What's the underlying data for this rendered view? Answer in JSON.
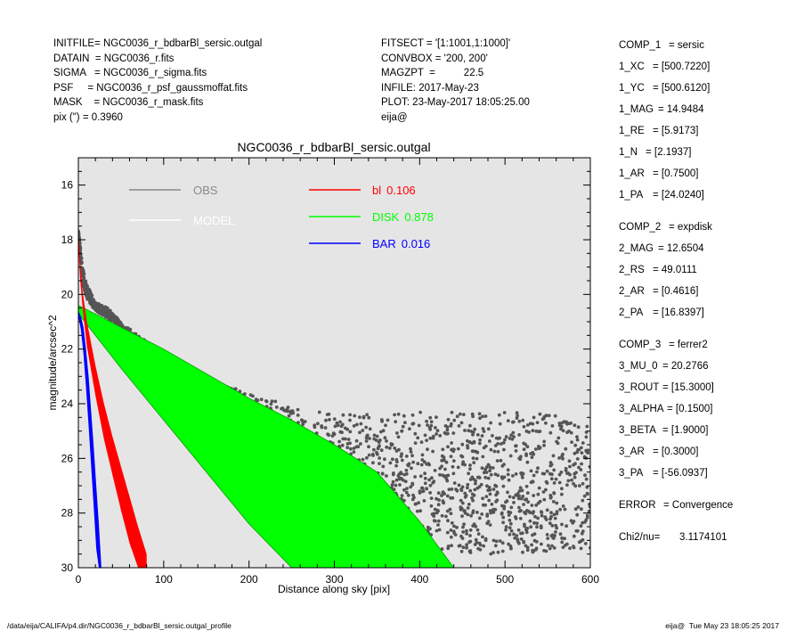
{
  "header_left": [
    {
      "key": "INITFILE=",
      "value": "NGC0036_r_bdbarBl_sersic.outgal"
    },
    {
      "key": "DATAIN  =",
      "value": "NGC0036_r.fits"
    },
    {
      "key": "SIGMA   =",
      "value": "NGC0036_r_sigma.fits"
    },
    {
      "key": "PSF     =",
      "value": "NGC0036_r_psf_gaussmoffat.fits"
    },
    {
      "key": "MASK    =",
      "value": "NGC0036_r_mask.fits"
    },
    {
      "key": "pix (\") =",
      "value": "0.3960"
    }
  ],
  "header_mid": [
    {
      "key": "FITSECT =",
      "value": "'[1:1001,1:1000]'"
    },
    {
      "key": "CONVBOX =",
      "value": "'200, 200'"
    },
    {
      "key": "MAGZPT  =",
      "value": "22.5"
    },
    {
      "key": "INFILE:",
      "value": "2017-May-23"
    },
    {
      "key": "PLOT:",
      "value": "23-May-2017 18:05:25.00"
    },
    {
      "key": "eija@",
      "value": ""
    }
  ],
  "params": [
    {
      "key": "COMP_1",
      "value": "= sersic",
      "gap": false
    },
    {
      "key": "1_XC",
      "value": "= [500.7220]",
      "gap": false
    },
    {
      "key": "1_YC",
      "value": "= [500.6120]",
      "gap": false
    },
    {
      "key": "1_MAG",
      "value": "= 14.9484",
      "gap": false
    },
    {
      "key": "1_RE",
      "value": "= [5.9173]",
      "gap": false
    },
    {
      "key": "1_N",
      "value": "= [2.1937]",
      "gap": false
    },
    {
      "key": "1_AR",
      "value": "= [0.7500]",
      "gap": false
    },
    {
      "key": "1_PA",
      "value": "= [24.0240]",
      "gap": false
    },
    {
      "key": "COMP_2",
      "value": "= expdisk",
      "gap": true
    },
    {
      "key": "2_MAG",
      "value": "= 12.6504",
      "gap": false
    },
    {
      "key": "2_RS",
      "value": "= 49.0111",
      "gap": false
    },
    {
      "key": "2_AR",
      "value": "= [0.4616]",
      "gap": false
    },
    {
      "key": "2_PA",
      "value": "= [16.8397]",
      "gap": false
    },
    {
      "key": "COMP_3",
      "value": "= ferrer2",
      "gap": true
    },
    {
      "key": "3_MU_0",
      "value": "= 20.2766",
      "gap": false
    },
    {
      "key": "3_ROUT",
      "value": "= [15.3000]",
      "gap": false
    },
    {
      "key": "3_ALPHA",
      "value": "= [0.1500]",
      "gap": false
    },
    {
      "key": "3_BETA",
      "value": "= [1.9000]",
      "gap": false
    },
    {
      "key": "3_AR",
      "value": "= [0.3000]",
      "gap": false
    },
    {
      "key": "3_PA",
      "value": "= [-56.0937]",
      "gap": false
    },
    {
      "key": "ERROR",
      "value": "= Convergence",
      "gap": true
    },
    {
      "key": "Chi2/nu=",
      "value": "3.1174101",
      "gap": true
    }
  ],
  "footer": {
    "left": "/data/eija/CALIFA/p4.dir/NGC0036_r_bdbarBl_sersic.outgal_profile",
    "right": "eija@  Tue May 23 18:05:25 2017"
  },
  "colors": {
    "plot_bg": "#e5e5e5",
    "obs": "#555555",
    "obs_legend": "#8a8a8a",
    "model": "#ffffff",
    "bulge": "#ff0000",
    "disk": "#00ff00",
    "disk_edge": "#009a00",
    "bar": "#0000ff"
  },
  "chart_data": {
    "type": "scatter",
    "title": "NGC0036_r_bdbarBl_sersic.outgal",
    "xlabel": "Distance along sky [pix]",
    "ylabel": "magnitude/arcsec^2",
    "xlim": [
      0,
      600
    ],
    "ylim": [
      30,
      15
    ],
    "x_ticks": [
      0,
      100,
      200,
      300,
      400,
      500,
      600
    ],
    "y_ticks": [
      16,
      18,
      20,
      22,
      24,
      26,
      28,
      30
    ],
    "legend": [
      {
        "name": "OBS",
        "fraction": "",
        "color_key": "obs_legend"
      },
      {
        "name": "MODEL",
        "fraction": "",
        "color_key": "model"
      },
      {
        "name": "bl",
        "fraction": "0.106",
        "color_key": "bulge"
      },
      {
        "name": "DISK",
        "fraction": "0.878",
        "color_key": "disk"
      },
      {
        "name": "BAR",
        "fraction": "0.016",
        "color_key": "bar"
      }
    ],
    "series": [
      {
        "name": "OBS",
        "kind": "scatter-band",
        "x": [
          0,
          5,
          10,
          20,
          35,
          50,
          75,
          100,
          150,
          200,
          250,
          300,
          350,
          400,
          450,
          500,
          550,
          600
        ],
        "y_bright": [
          17.6,
          19.0,
          19.6,
          20.3,
          20.5,
          21.0,
          21.6,
          22.2,
          23.0,
          23.6,
          24.1,
          24.4,
          24.4,
          24.3,
          24.3,
          24.3,
          24.4,
          24.6
        ],
        "y_faint": [
          17.9,
          19.6,
          20.2,
          20.6,
          20.9,
          21.3,
          22.5,
          23.3,
          24.8,
          26.3,
          27.6,
          28.5,
          29.0,
          29.4,
          29.5,
          29.5,
          29.4,
          29.3
        ]
      },
      {
        "name": "bl",
        "kind": "band",
        "x": [
          0,
          2,
          5,
          10,
          20,
          30,
          40,
          50,
          60,
          70,
          80
        ],
        "y_bright": [
          17.6,
          18.7,
          19.9,
          21.0,
          22.6,
          24.0,
          25.2,
          26.3,
          27.4,
          28.5,
          29.5
        ],
        "y_faint": [
          18.2,
          19.4,
          20.5,
          21.9,
          23.7,
          25.3,
          26.6,
          27.9,
          29.1,
          30.0,
          30.0
        ]
      },
      {
        "name": "DISK",
        "kind": "band",
        "x": [
          0,
          50,
          100,
          150,
          200,
          250,
          300,
          350,
          400,
          440
        ],
        "y_bright": [
          20.4,
          21.2,
          22.0,
          22.9,
          23.8,
          24.6,
          25.5,
          26.5,
          28.3,
          30.0
        ],
        "y_faint": [
          20.7,
          22.7,
          24.6,
          26.5,
          28.4,
          30.0,
          30.0,
          30.0,
          30.0,
          30.0
        ]
      },
      {
        "name": "BAR",
        "kind": "band",
        "x": [
          0,
          3,
          6,
          9,
          12,
          15,
          18,
          21,
          24,
          27
        ],
        "y_bright": [
          20.6,
          20.8,
          21.2,
          22.0,
          23.0,
          24.3,
          25.6,
          27.0,
          28.4,
          30.0
        ],
        "y_faint": [
          20.8,
          21.3,
          22.2,
          23.4,
          24.8,
          26.3,
          27.8,
          29.3,
          30.0,
          30.0
        ]
      }
    ]
  }
}
